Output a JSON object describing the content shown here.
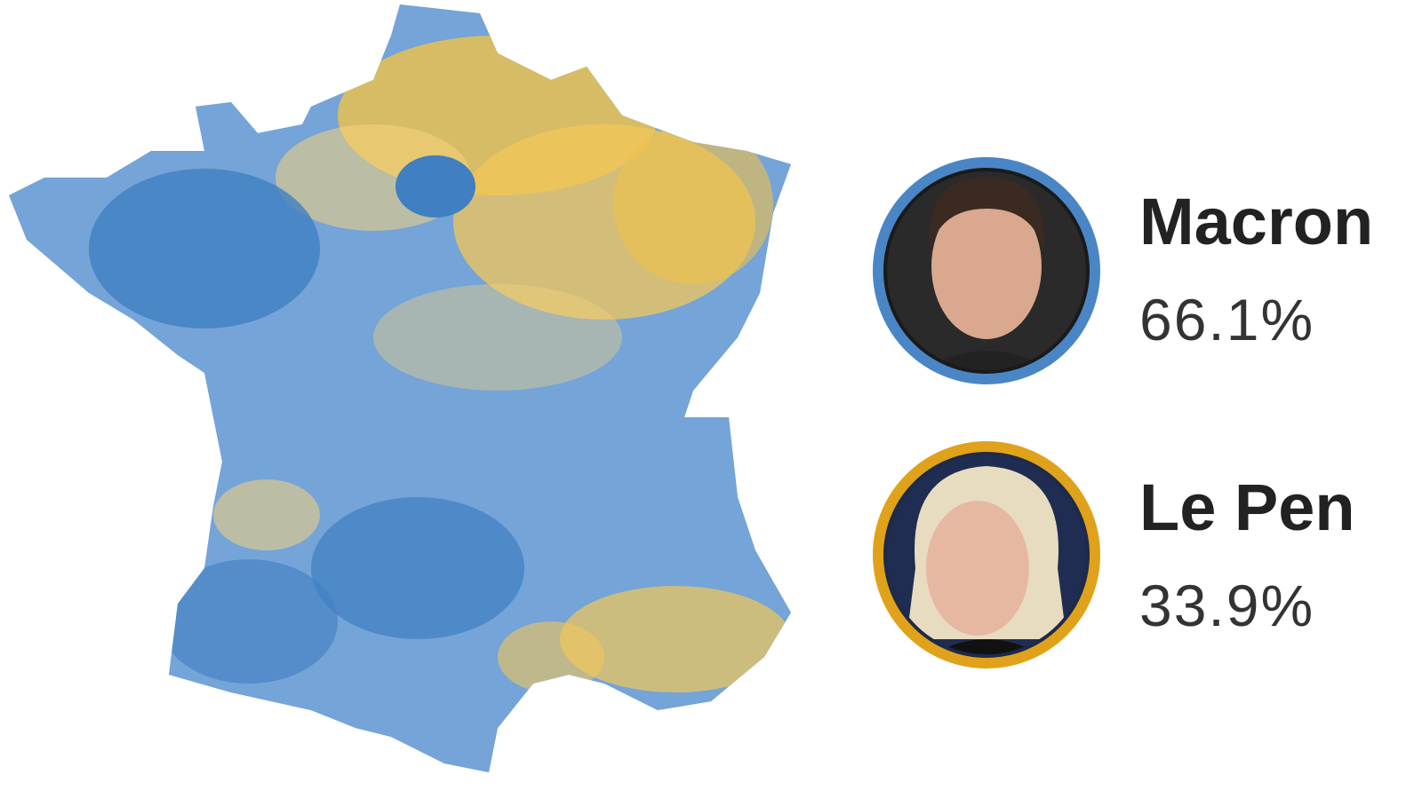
{
  "candidates": [
    {
      "name": "Macron",
      "result": "66.1%"
    },
    {
      "name": "Le Pen",
      "result": "33.9%"
    }
  ]
}
